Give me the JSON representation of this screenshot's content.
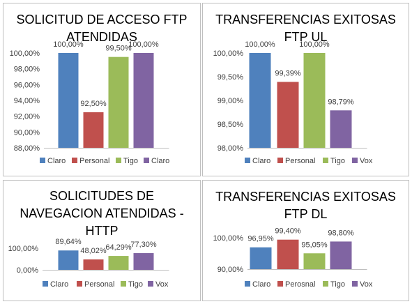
{
  "chart_data": [
    {
      "type": "bar",
      "title_lines": [
        "SOLICITUD DE ACCESO FTP",
        "ATENDIDAS"
      ],
      "categories": [
        "Claro",
        "Personal",
        "Tigo",
        "Claro"
      ],
      "values": [
        100.0,
        92.5,
        99.5,
        100.0
      ],
      "data_labels": [
        "100,00%",
        "92,50%",
        "99,50%",
        "100,00%"
      ],
      "ylim": [
        88,
        100
      ],
      "yticks": [
        88,
        90,
        92,
        94,
        96,
        98,
        100
      ],
      "ytick_labels": [
        "88,00%",
        "90,00%",
        "92,00%",
        "94,00%",
        "96,00%",
        "98,00%",
        "100,00%"
      ],
      "legend": [
        "Claro",
        "Personal",
        "Tigo",
        "Claro"
      ],
      "legend_position": "bottom",
      "grid": false
    },
    {
      "type": "bar",
      "title_lines": [
        "TRANSFERENCIAS EXITOSAS",
        "FTP UL"
      ],
      "categories": [
        "Claro",
        "Personal",
        "Tigo",
        "Vox"
      ],
      "values": [
        100.0,
        99.39,
        100.0,
        98.79
      ],
      "data_labels": [
        "100,00%",
        "99,39%",
        "100,00%",
        "98,79%"
      ],
      "ylim": [
        98,
        100
      ],
      "yticks": [
        98,
        98.5,
        99,
        99.5,
        100
      ],
      "ytick_labels": [
        "98,00%",
        "98,50%",
        "99,00%",
        "99,50%",
        "100,00%"
      ],
      "legend": [
        "Claro",
        "Personal",
        "Tigo",
        "Vox"
      ],
      "legend_position": "bottom",
      "grid": false
    },
    {
      "type": "bar",
      "title_lines": [
        "SOLICITUDES DE",
        "NAVEGACION ATENDIDAS -",
        "HTTP"
      ],
      "categories": [
        "Claro",
        "Personal",
        "Tigo",
        "Vox"
      ],
      "values": [
        89.64,
        48.02,
        64.29,
        77.3
      ],
      "data_labels": [
        "89,64%",
        "48,02%",
        "64,29%",
        "77,30%"
      ],
      "ylim": [
        0,
        100
      ],
      "yticks": [
        0,
        100
      ],
      "ytick_labels": [
        "0,00%",
        "100,00%"
      ],
      "legend": [
        "Claro",
        "Personal",
        "Tigo",
        "Vox"
      ],
      "legend_position": "bottom",
      "grid": false
    },
    {
      "type": "bar",
      "title_lines": [
        "TRANSFERENCIAS EXITOSAS",
        "FTP DL"
      ],
      "categories": [
        "Claro",
        "Perosnal",
        "Tigo",
        "Vox"
      ],
      "values": [
        96.95,
        99.4,
        95.05,
        98.8
      ],
      "data_labels": [
        "96,95%",
        "99,40%",
        "95,05%",
        "98,80%"
      ],
      "ylim": [
        90,
        100
      ],
      "yticks": [
        90,
        100
      ],
      "ytick_labels": [
        "90,00%",
        "100,00%"
      ],
      "legend": [
        "Claro",
        "Perosnal",
        "Tigo",
        "Vox"
      ],
      "legend_position": "bottom",
      "grid": false
    }
  ],
  "colors": [
    "#4f81bd",
    "#c0504d",
    "#9bbb59",
    "#8064a2"
  ]
}
